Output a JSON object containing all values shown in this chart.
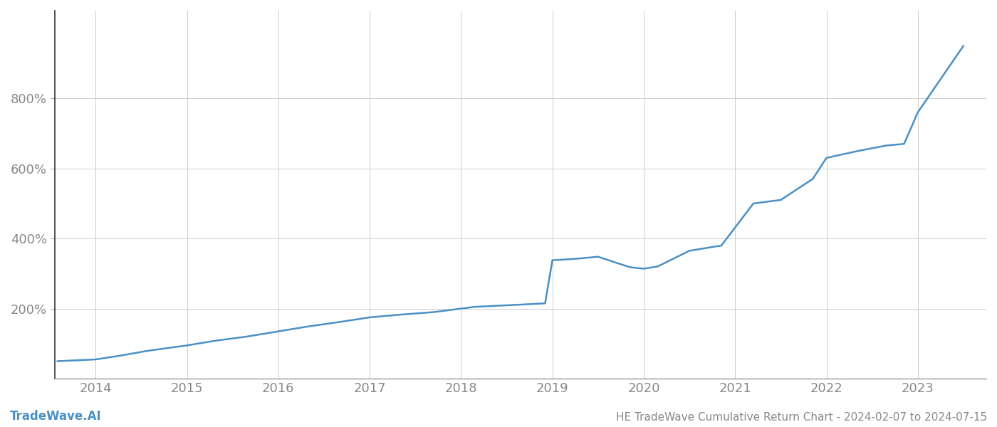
{
  "title": "HE TradeWave Cumulative Return Chart - 2024-02-07 to 2024-07-15",
  "watermark": "TradeWave.AI",
  "line_color": "#4a90c4",
  "background_color": "#ffffff",
  "grid_color": "#cccccc",
  "text_color": "#888888",
  "x_years": [
    2014,
    2015,
    2016,
    2017,
    2018,
    2019,
    2020,
    2021,
    2022,
    2023
  ],
  "x_data": [
    2013.58,
    2014.0,
    2014.25,
    2014.58,
    2015.0,
    2015.3,
    2015.65,
    2016.0,
    2016.3,
    2016.7,
    2017.0,
    2017.3,
    2017.7,
    2018.0,
    2018.15,
    2018.7,
    2018.92,
    2019.0,
    2019.25,
    2019.5,
    2019.85,
    2020.0,
    2020.15,
    2020.5,
    2020.85,
    2021.2,
    2021.5,
    2021.85,
    2022.0,
    2022.35,
    2022.65,
    2022.85,
    2023.0,
    2023.5
  ],
  "y_data": [
    50,
    55,
    65,
    80,
    95,
    108,
    120,
    135,
    148,
    163,
    175,
    182,
    190,
    200,
    205,
    212,
    215,
    338,
    342,
    348,
    318,
    314,
    320,
    365,
    380,
    500,
    510,
    570,
    630,
    650,
    665,
    670,
    760,
    950
  ],
  "ylim_min": 0,
  "ylim_max": 1050,
  "xlim_min": 2013.55,
  "xlim_max": 2023.75,
  "yticks": [
    200,
    400,
    600,
    800
  ],
  "ytick_labels": [
    "200%",
    "400%",
    "600%",
    "800%"
  ],
  "title_fontsize": 11,
  "tick_fontsize": 13,
  "watermark_fontsize": 12,
  "line_width": 1.8
}
